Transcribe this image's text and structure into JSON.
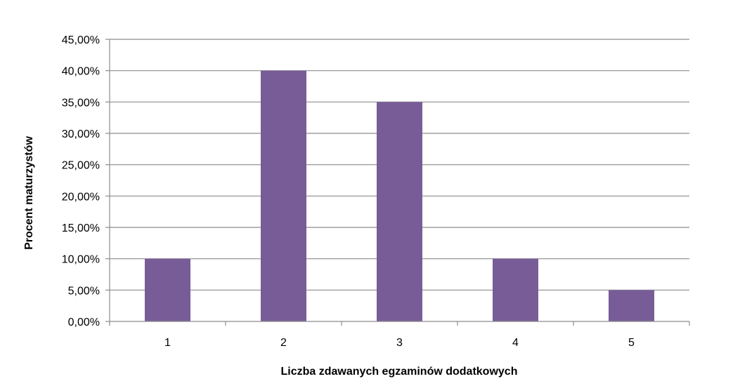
{
  "chart_data": {
    "type": "bar",
    "categories": [
      "1",
      "2",
      "3",
      "4",
      "5"
    ],
    "values": [
      10,
      40,
      35,
      10,
      5
    ],
    "value_format": "percent, 2 decimals, comma separator",
    "y_ticks": [
      "0,00%",
      "5,00%",
      "10,00%",
      "15,00%",
      "20,00%",
      "25,00%",
      "30,00%",
      "35,00%",
      "40,00%",
      "45,00%"
    ],
    "ylim": [
      0,
      45
    ],
    "y_step": 5,
    "xlabel": "Liczba zdawanych egzaminów dodatkowych",
    "ylabel": "Procent maturzystów",
    "grid": "horizontal",
    "legend": "none",
    "colors": {
      "bar": "#785C97",
      "grid": "#8C8C8C",
      "axis": "#8C8C8C"
    }
  }
}
